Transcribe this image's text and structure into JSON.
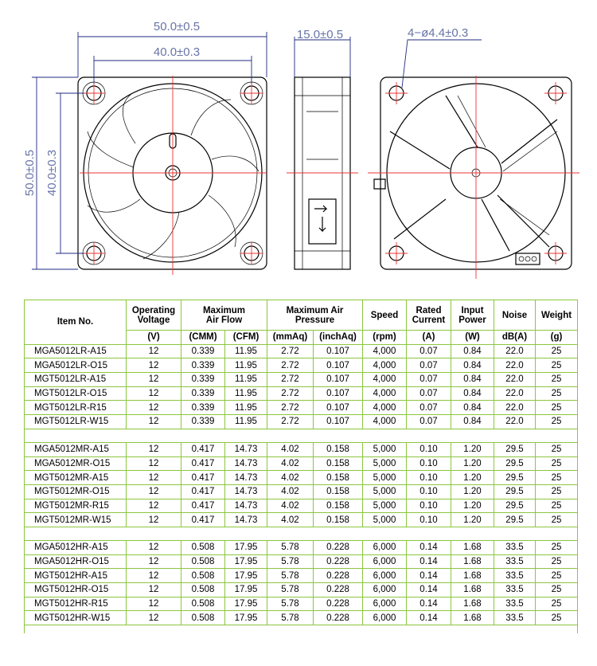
{
  "drawing": {
    "front_width": "50.0±0.5",
    "front_hole_pitch": "40.0±0.3",
    "front_height": "50.0±0.5",
    "front_hole_pitch_vertical": "40.0±0.3",
    "side_depth": "15.0±0.5",
    "holes": "4−ø4.4±0.3"
  },
  "table": {
    "header": [
      "Item No.",
      "Operating Voltage",
      "Maximum Air Flow",
      "Maximum Air Pressure",
      "Speed",
      "Rated Current",
      "Input Power",
      "Noise",
      "Weight"
    ],
    "units": [
      "(V)",
      "(CMM)",
      "(CFM)",
      "(mmAq)",
      "(inchAq)",
      "(rpm)",
      "(A)",
      "(W)",
      "dB(A)",
      "(g)"
    ],
    "groups": [
      [
        [
          "MGA5012LR-A15",
          "12",
          "0.339",
          "11.95",
          "2.72",
          "0.107",
          "4,000",
          "0.07",
          "0.84",
          "22.0",
          "25"
        ],
        [
          "MGA5012LR-O15",
          "12",
          "0.339",
          "11.95",
          "2.72",
          "0.107",
          "4,000",
          "0.07",
          "0.84",
          "22.0",
          "25"
        ],
        [
          "MGT5012LR-A15",
          "12",
          "0.339",
          "11.95",
          "2.72",
          "0.107",
          "4,000",
          "0.07",
          "0.84",
          "22.0",
          "25"
        ],
        [
          "MGT5012LR-O15",
          "12",
          "0.339",
          "11.95",
          "2.72",
          "0.107",
          "4,000",
          "0.07",
          "0.84",
          "22.0",
          "25"
        ],
        [
          "MGT5012LR-R15",
          "12",
          "0.339",
          "11.95",
          "2.72",
          "0.107",
          "4,000",
          "0.07",
          "0.84",
          "22.0",
          "25"
        ],
        [
          "MGT5012LR-W15",
          "12",
          "0.339",
          "11.95",
          "2.72",
          "0.107",
          "4,000",
          "0.07",
          "0.84",
          "22.0",
          "25"
        ]
      ],
      [
        [
          "MGA5012MR-A15",
          "12",
          "0.417",
          "14.73",
          "4.02",
          "0.158",
          "5,000",
          "0.10",
          "1.20",
          "29.5",
          "25"
        ],
        [
          "MGA5012MR-O15",
          "12",
          "0.417",
          "14.73",
          "4.02",
          "0.158",
          "5,000",
          "0.10",
          "1.20",
          "29.5",
          "25"
        ],
        [
          "MGT5012MR-A15",
          "12",
          "0.417",
          "14.73",
          "4.02",
          "0.158",
          "5,000",
          "0.10",
          "1.20",
          "29.5",
          "25"
        ],
        [
          "MGT5012MR-O15",
          "12",
          "0.417",
          "14.73",
          "4.02",
          "0.158",
          "5,000",
          "0.10",
          "1.20",
          "29.5",
          "25"
        ],
        [
          "MGT5012MR-R15",
          "12",
          "0.417",
          "14.73",
          "4.02",
          "0.158",
          "5,000",
          "0.10",
          "1.20",
          "29.5",
          "25"
        ],
        [
          "MGT5012MR-W15",
          "12",
          "0.417",
          "14.73",
          "4.02",
          "0.158",
          "5,000",
          "0.10",
          "1.20",
          "29.5",
          "25"
        ]
      ],
      [
        [
          "MGA5012HR-A15",
          "12",
          "0.508",
          "17.95",
          "5.78",
          "0.228",
          "6,000",
          "0.14",
          "1.68",
          "33.5",
          "25"
        ],
        [
          "MGA5012HR-O15",
          "12",
          "0.508",
          "17.95",
          "5.78",
          "0.228",
          "6,000",
          "0.14",
          "1.68",
          "33.5",
          "25"
        ],
        [
          "MGT5012HR-A15",
          "12",
          "0.508",
          "17.95",
          "5.78",
          "0.228",
          "6,000",
          "0.14",
          "1.68",
          "33.5",
          "25"
        ],
        [
          "MGT5012HR-O15",
          "12",
          "0.508",
          "17.95",
          "5.78",
          "0.228",
          "6,000",
          "0.14",
          "1.68",
          "33.5",
          "25"
        ],
        [
          "MGT5012HR-R15",
          "12",
          "0.508",
          "17.95",
          "5.78",
          "0.228",
          "6,000",
          "0.14",
          "1.68",
          "33.5",
          "25"
        ],
        [
          "MGT5012HR-W15",
          "12",
          "0.508",
          "17.95",
          "5.78",
          "0.228",
          "6,000",
          "0.14",
          "1.68",
          "33.5",
          "25"
        ]
      ]
    ]
  }
}
